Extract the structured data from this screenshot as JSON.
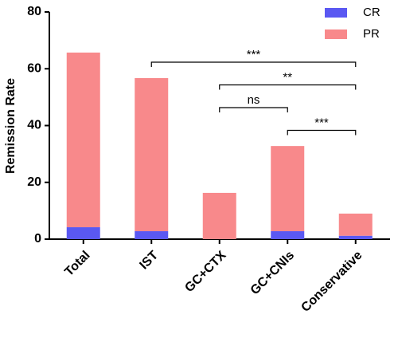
{
  "chart_data": {
    "type": "stacked_bar",
    "y_label": "Remission Rate",
    "categories": [
      "Total",
      "IST",
      "GC+CTX",
      "GC+CNIs",
      "Conservative"
    ],
    "series": [
      {
        "name": "CR",
        "color": "#5a58f2",
        "values": [
          4.2,
          2.8,
          0,
          2.8,
          1.2
        ]
      },
      {
        "name": "PR",
        "color": "#f8898b",
        "values": [
          61.5,
          53.9,
          16.3,
          30.0,
          7.8
        ]
      }
    ],
    "ylim": [
      0,
      80
    ],
    "yticks": [
      0,
      20,
      40,
      60,
      80
    ],
    "legend": "top-right",
    "annotations": [
      {
        "label": "***",
        "from": "IST",
        "to": "Conservative"
      },
      {
        "label": "**",
        "from": "GC+CTX",
        "to": "Conservative"
      },
      {
        "label": "ns",
        "from": "GC+CTX",
        "to": "GC+CNIs"
      },
      {
        "label": "***",
        "from": "GC+CNIs",
        "to": "Conservative"
      }
    ]
  }
}
